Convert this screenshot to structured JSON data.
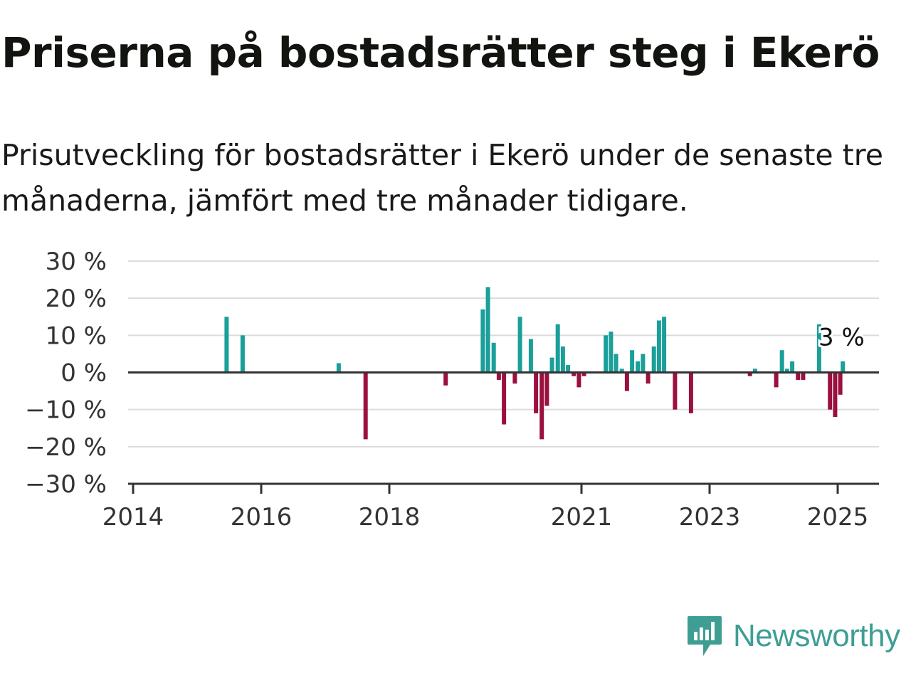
{
  "title": "Priserna på bostadsrätter steg i Ekerö",
  "subtitle": "Prisutveckling för bostadsrätter i Ekerö under de senaste tre månaderna, jämfört med tre månader tidigare.",
  "brand": {
    "name": "Newsworthy",
    "color": "#3e9e94",
    "icon": "newsworthy-bar-chart-icon"
  },
  "colors": {
    "positive": "#1a9f9a",
    "negative": "#9b1040",
    "grid": "#dcdcdc",
    "axis": "#333333"
  },
  "chart_data": {
    "type": "bar",
    "ylabel": "",
    "xlabel": "",
    "ylim": [
      -30,
      30
    ],
    "yticks": [
      30,
      20,
      10,
      0,
      -10,
      -20,
      -30
    ],
    "ytick_labels": [
      "30 %",
      "20 %",
      "10 %",
      "0 %",
      "−10 %",
      "−20 %",
      "−30 %"
    ],
    "xticks": [
      2014,
      2016,
      2018,
      2021,
      2023,
      2025
    ],
    "xtick_labels": [
      "2014",
      "2016",
      "2018",
      "2021",
      "2023",
      "2025"
    ],
    "grid": true,
    "annotation": {
      "label": "3 %",
      "x": 2025.08,
      "value": 3
    },
    "series": [
      {
        "values": [
          {
            "x": 2015.46,
            "y": 15
          },
          {
            "x": 2015.71,
            "y": 10
          },
          {
            "x": 2017.21,
            "y": 2.5
          },
          {
            "x": 2017.63,
            "y": -18
          },
          {
            "x": 2018.88,
            "y": -3.5
          },
          {
            "x": 2019.46,
            "y": 17
          },
          {
            "x": 2019.54,
            "y": 23
          },
          {
            "x": 2019.63,
            "y": 8
          },
          {
            "x": 2019.71,
            "y": -2
          },
          {
            "x": 2019.79,
            "y": -14
          },
          {
            "x": 2019.96,
            "y": -3
          },
          {
            "x": 2020.04,
            "y": 15
          },
          {
            "x": 2020.21,
            "y": 9
          },
          {
            "x": 2020.29,
            "y": -11
          },
          {
            "x": 2020.38,
            "y": -18
          },
          {
            "x": 2020.46,
            "y": -9
          },
          {
            "x": 2020.54,
            "y": 4
          },
          {
            "x": 2020.63,
            "y": 13
          },
          {
            "x": 2020.71,
            "y": 7
          },
          {
            "x": 2020.79,
            "y": 2
          },
          {
            "x": 2020.88,
            "y": -1
          },
          {
            "x": 2020.96,
            "y": -4
          },
          {
            "x": 2021.04,
            "y": -1
          },
          {
            "x": 2021.38,
            "y": 10
          },
          {
            "x": 2021.46,
            "y": 11
          },
          {
            "x": 2021.54,
            "y": 5
          },
          {
            "x": 2021.63,
            "y": 1
          },
          {
            "x": 2021.71,
            "y": -5
          },
          {
            "x": 2021.79,
            "y": 6
          },
          {
            "x": 2021.88,
            "y": 3
          },
          {
            "x": 2021.96,
            "y": 5
          },
          {
            "x": 2022.04,
            "y": -3
          },
          {
            "x": 2022.13,
            "y": 7
          },
          {
            "x": 2022.21,
            "y": 14
          },
          {
            "x": 2022.29,
            "y": 15
          },
          {
            "x": 2022.46,
            "y": -10
          },
          {
            "x": 2022.71,
            "y": -11
          },
          {
            "x": 2023.63,
            "y": -1
          },
          {
            "x": 2023.71,
            "y": 1
          },
          {
            "x": 2024.04,
            "y": -4
          },
          {
            "x": 2024.13,
            "y": 6
          },
          {
            "x": 2024.21,
            "y": 1
          },
          {
            "x": 2024.29,
            "y": 3
          },
          {
            "x": 2024.38,
            "y": -2
          },
          {
            "x": 2024.46,
            "y": -2
          },
          {
            "x": 2024.71,
            "y": 13
          },
          {
            "x": 2024.88,
            "y": -10
          },
          {
            "x": 2024.96,
            "y": -12
          },
          {
            "x": 2025.04,
            "y": -6
          },
          {
            "x": 2025.08,
            "y": 3
          }
        ]
      }
    ]
  }
}
